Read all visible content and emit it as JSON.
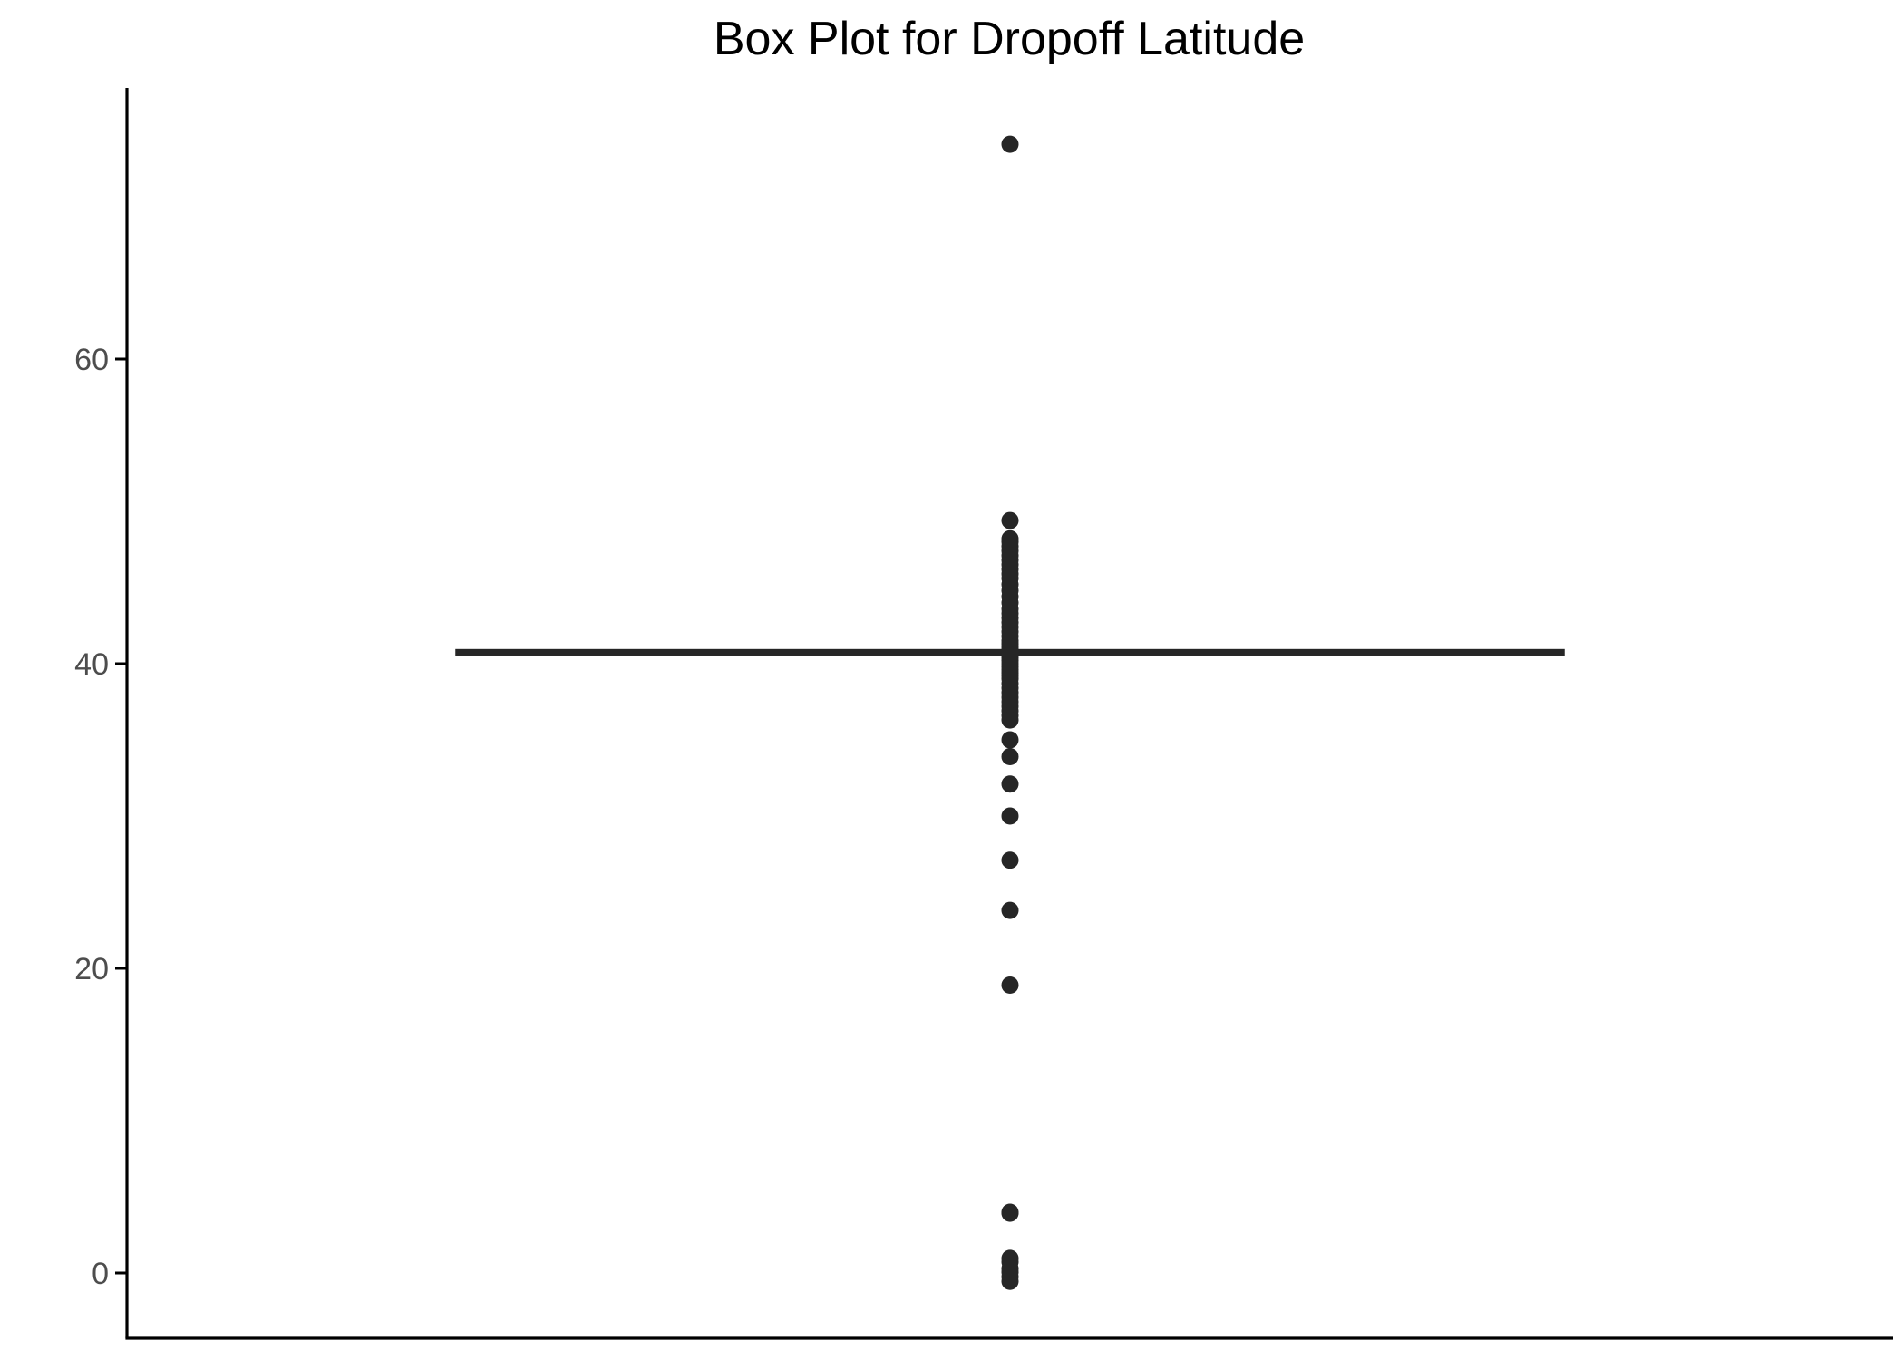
{
  "chart_data": {
    "type": "box",
    "title": "Box Plot for Dropoff Latitude",
    "xlabel": "",
    "ylabel": "",
    "ylim": [
      -2.2,
      78
    ],
    "yticks": [
      0,
      20,
      40,
      60
    ],
    "grid": false,
    "legend": "none",
    "colors": {
      "marks": "#262626",
      "axis": "#000000",
      "tick_label": "#4d4d4d",
      "background": "#ffffff"
    },
    "box": {
      "lower_whisker": 40.63,
      "q1": 40.73,
      "median": 40.75,
      "q3": 40.77,
      "upper_whisker": 40.86
    },
    "outliers": [
      74.1,
      49.4,
      48.2,
      48.0,
      47.7,
      47.4,
      47.1,
      46.8,
      46.5,
      46.2,
      45.9,
      45.6,
      45.2,
      44.8,
      44.4,
      44.0,
      43.6,
      43.3,
      43.0,
      42.7,
      42.4,
      42.1,
      41.8,
      41.5,
      41.3,
      41.1,
      40.95,
      40.55,
      40.4,
      40.2,
      40.0,
      39.8,
      39.6,
      39.4,
      39.2,
      39.0,
      38.7,
      38.4,
      38.1,
      37.8,
      37.5,
      37.2,
      36.9,
      36.6,
      36.3,
      35.0,
      33.9,
      32.1,
      30.0,
      27.1,
      23.8,
      18.9,
      3.99,
      3.92,
      0.96,
      0.72,
      0.28,
      0.05,
      -0.25,
      -0.55
    ]
  }
}
